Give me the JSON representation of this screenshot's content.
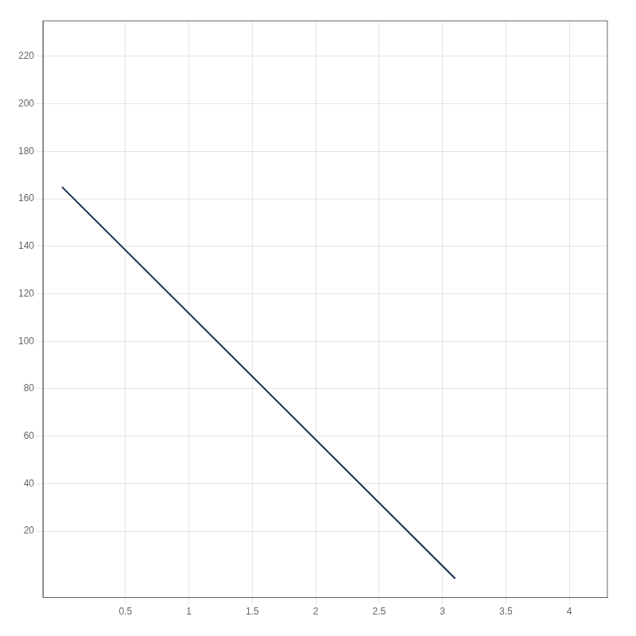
{
  "chart_data": {
    "type": "line",
    "x": [
      0,
      3.1
    ],
    "values": [
      165,
      0
    ],
    "color": "#1a2e4a",
    "xlim": [
      -0.15,
      4.3
    ],
    "ylim": [
      -8,
      235
    ],
    "xticks": [
      0.5,
      1,
      1.5,
      2,
      2.5,
      3,
      3.5,
      4
    ],
    "yticks": [
      20,
      40,
      60,
      80,
      100,
      120,
      140,
      160,
      180,
      200,
      220
    ],
    "grid": true
  }
}
